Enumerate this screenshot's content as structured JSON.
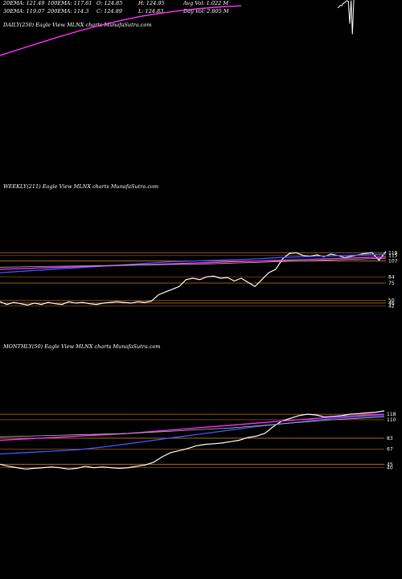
{
  "header": {
    "row1": [
      {
        "id": "ema20",
        "text": "20EMA: 121.49"
      },
      {
        "id": "ema100",
        "text": "100EMA: 117.61"
      },
      {
        "id": "open",
        "text": "O: 124.85"
      },
      {
        "id": "high",
        "text": "H: 124.95"
      },
      {
        "id": "avgvol",
        "text": "Avg Vol: 1.022  M"
      }
    ],
    "row2": [
      {
        "id": "ema30",
        "text": "30EMA: 119.07"
      },
      {
        "id": "ema200",
        "text": "200EMA: 114.3"
      },
      {
        "id": "close",
        "text": "C: 124.89"
      },
      {
        "id": "low",
        "text": "L: 124.83"
      },
      {
        "id": "daychange",
        "text": "Day Vol: 2.805  M"
      }
    ]
  },
  "panels": {
    "daily": {
      "label": "DAILY(250) Eagle  View  MLNX  charts MunafaSutra.com"
    },
    "weekly": {
      "label": "WEEKLY(211) Eagle  View  MLNX  charts MunafaSutra.com"
    },
    "monthly": {
      "label": "MONTHLY(50) Eagle  View  MLNX  charts MunafaSutra.com"
    }
  },
  "colors": {
    "background": "#000000",
    "price": "#ffffff",
    "ema_blue": "#3b5cff",
    "ema_magenta": "#ff33ff",
    "ema_gray": "#bbbbbb",
    "level_orange": "#c47a1e",
    "level_brown": "#8b4a1a"
  },
  "chart_data": [
    {
      "type": "line",
      "panel": "daily",
      "series": [
        {
          "role": "ema-magenta",
          "values": [
            20,
            32,
            44,
            56,
            67,
            77,
            86,
            94,
            100,
            105,
            109,
            112,
            114
          ]
        },
        {
          "role": "price",
          "values": [
            110,
            112,
            115,
            114,
            118,
            120,
            122,
            124,
            122,
            80,
            124,
            60,
            125
          ]
        }
      ]
    },
    {
      "type": "line",
      "panel": "weekly",
      "levels": [
        {
          "value": 119,
          "label": "119"
        },
        {
          "value": 115,
          "label": "115"
        },
        {
          "value": 107,
          "label": "107"
        },
        {
          "value": 84,
          "label": "84"
        },
        {
          "value": 75,
          "label": "75"
        },
        {
          "value": 50,
          "label": "50"
        },
        {
          "value": 46,
          "label": "46"
        },
        {
          "value": 42,
          "label": "42"
        }
      ],
      "series": [
        {
          "role": "price",
          "values": [
            48,
            44,
            47,
            45,
            43,
            46,
            44,
            47,
            45,
            44,
            48,
            46,
            47,
            45,
            44,
            46,
            47,
            48,
            47,
            46,
            48,
            47,
            49,
            58,
            62,
            66,
            70,
            80,
            82,
            80,
            84,
            85,
            82,
            83,
            78,
            82,
            76,
            70,
            80,
            90,
            95,
            110,
            118,
            119,
            115,
            114,
            116,
            113,
            117,
            115,
            112,
            114,
            116,
            118,
            119,
            108,
            121
          ]
        },
        {
          "role": "ema-blue",
          "values": [
            90,
            92,
            94,
            96,
            98,
            100,
            102,
            104,
            106,
            107,
            108,
            109,
            110,
            112,
            113,
            114,
            115,
            116,
            117
          ]
        },
        {
          "role": "ema-magenta",
          "values": [
            95,
            96,
            97,
            98,
            99,
            100,
            101,
            102,
            103,
            104,
            105,
            106,
            107,
            108,
            109,
            110,
            111,
            112,
            113
          ]
        },
        {
          "role": "ema-gray",
          "values": [
            98,
            98.5,
            99,
            99.5,
            100,
            100.5,
            101,
            101.5,
            102,
            102.5,
            103,
            104,
            105,
            106,
            107,
            108,
            109,
            110,
            111
          ]
        }
      ]
    },
    {
      "type": "line",
      "panel": "monthly",
      "levels": [
        {
          "value": 118,
          "label": "118"
        },
        {
          "value": 110,
          "label": "110"
        },
        {
          "value": 83,
          "label": "83"
        },
        {
          "value": 67,
          "label": "67"
        },
        {
          "value": 45,
          "label": "45"
        },
        {
          "value": 40,
          "label": "40"
        }
      ],
      "series": [
        {
          "role": "price",
          "values": [
            45,
            42,
            40,
            38,
            39,
            40,
            41,
            40,
            38,
            39,
            42,
            40,
            41,
            40,
            39,
            40,
            42,
            44,
            48,
            56,
            62,
            65,
            68,
            72,
            74,
            75,
            76,
            78,
            80,
            84,
            86,
            90,
            100,
            108,
            112,
            116,
            118,
            117,
            114,
            115,
            116,
            118,
            119,
            120,
            121,
            123
          ]
        },
        {
          "role": "ema-blue",
          "values": [
            60,
            62,
            64,
            66,
            70,
            75,
            80,
            85,
            90,
            95,
            100,
            104,
            108,
            112,
            114,
            116
          ]
        },
        {
          "role": "ema-magenta",
          "values": [
            80,
            82,
            84,
            86,
            88,
            90,
            93,
            96,
            99,
            102,
            105,
            108,
            111,
            114,
            116,
            118
          ]
        },
        {
          "role": "ema-gray",
          "values": [
            85,
            86,
            87,
            88,
            89,
            90,
            92,
            94,
            96,
            98,
            101,
            104,
            107,
            110,
            112,
            114
          ]
        }
      ]
    }
  ]
}
